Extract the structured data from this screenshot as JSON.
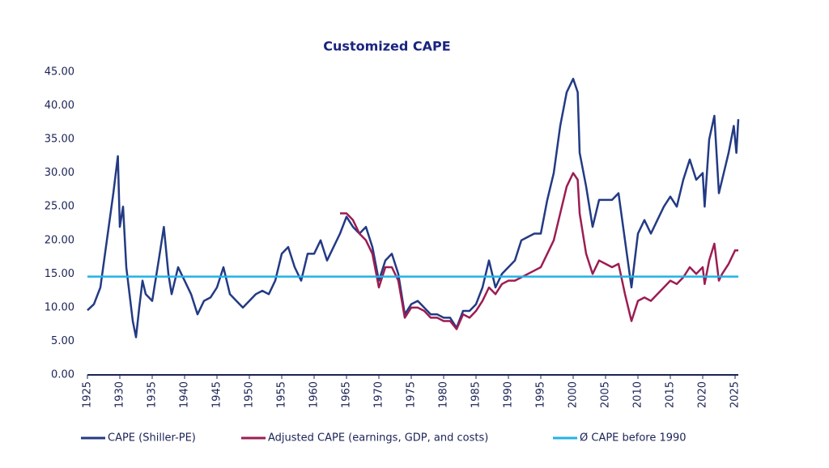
{
  "chart_data": {
    "type": "line",
    "title": "Customized CAPE",
    "xlim": [
      1925,
      2025.5
    ],
    "xticks": [
      1925,
      1930,
      1935,
      1940,
      1945,
      1950,
      1955,
      1960,
      1965,
      1970,
      1975,
      1980,
      1985,
      1990,
      1995,
      2000,
      2005,
      2010,
      2015,
      2020,
      2025
    ],
    "ylim": [
      0,
      45
    ],
    "yticks": [
      {
        "value": 0,
        "label": "0.00"
      },
      {
        "value": 5,
        "label": "5.00"
      },
      {
        "value": 10,
        "label": "10.00"
      },
      {
        "value": 15,
        "label": "15.00"
      },
      {
        "value": 20,
        "label": "20.00"
      },
      {
        "value": 25,
        "label": "25.00"
      },
      {
        "value": 30,
        "label": "30.00"
      },
      {
        "value": 35,
        "label": "35.00"
      },
      {
        "value": 40,
        "label": "40.00"
      },
      {
        "value": 45,
        "label": "45.00"
      }
    ],
    "legend": "bottom",
    "series": [
      {
        "name": "CAPE (Shiller-PE)",
        "color": "#233a84",
        "x": [
          1925,
          1926,
          1927,
          1928,
          1929,
          1929.7,
          1930,
          1930.5,
          1931,
          1932,
          1932.5,
          1933,
          1933.5,
          1934,
          1935,
          1936,
          1936.8,
          1937.5,
          1938,
          1939,
          1940,
          1941,
          1942,
          1943,
          1944,
          1945,
          1946,
          1947,
          1948,
          1949,
          1950,
          1951,
          1952,
          1953,
          1954,
          1955,
          1956,
          1957,
          1958,
          1959,
          1960,
          1961,
          1962,
          1963,
          1964,
          1965,
          1966,
          1967,
          1968,
          1969,
          1970,
          1971,
          1972,
          1973,
          1974,
          1975,
          1976,
          1977,
          1978,
          1979,
          1980,
          1981,
          1982,
          1983,
          1984,
          1985,
          1986,
          1987,
          1988,
          1989,
          1990,
          1991,
          1992,
          1993,
          1994,
          1995,
          1996,
          1997,
          1998,
          1999,
          2000,
          2000.7,
          2001,
          2002,
          2003,
          2004,
          2005,
          2006,
          2007,
          2008,
          2009,
          2009.5,
          2010,
          2011,
          2012,
          2013,
          2014,
          2015,
          2016,
          2017,
          2018,
          2019,
          2020,
          2020.3,
          2021,
          2021.8,
          2022.5,
          2023,
          2024,
          2024.8,
          2025.2,
          2025.5
        ],
        "values": [
          9.6,
          10.5,
          13,
          20,
          27,
          32.5,
          22,
          25,
          16,
          8,
          5.6,
          10,
          14,
          12,
          11,
          17,
          22,
          15,
          12,
          16,
          14,
          12,
          9,
          11,
          11.5,
          13,
          16,
          12,
          11,
          10,
          11,
          12,
          12.5,
          12,
          14,
          18,
          19,
          16,
          14,
          18,
          18,
          20,
          17,
          19,
          21,
          23.5,
          22,
          21,
          22,
          19,
          14,
          17,
          18,
          15,
          9,
          10.5,
          11,
          10,
          9,
          9,
          8.5,
          8.5,
          7,
          9.5,
          9.5,
          10.5,
          13,
          17,
          13,
          15,
          16,
          17,
          20,
          20.5,
          21,
          21,
          26,
          30,
          37,
          42,
          44,
          42,
          33,
          28,
          22,
          26,
          26,
          26,
          27,
          20,
          13,
          17,
          21,
          23,
          21,
          23,
          25,
          26.5,
          25,
          29,
          32,
          29,
          30,
          25,
          35,
          38.5,
          27,
          29,
          33,
          37,
          33,
          38
        ]
      },
      {
        "name": "Adjusted CAPE (earnings, GDP, and costs)",
        "color": "#9c1d52",
        "x": [
          1964,
          1965,
          1966,
          1967,
          1968,
          1969,
          1970,
          1971,
          1972,
          1973,
          1974,
          1975,
          1976,
          1977,
          1978,
          1979,
          1980,
          1981,
          1982,
          1983,
          1984,
          1985,
          1986,
          1987,
          1988,
          1989,
          1990,
          1991,
          1992,
          1993,
          1994,
          1995,
          1996,
          1997,
          1998,
          1999,
          2000,
          2000.7,
          2001,
          2002,
          2003,
          2004,
          2005,
          2006,
          2007,
          2008,
          2009,
          2010,
          2011,
          2012,
          2013,
          2014,
          2015,
          2016,
          2017,
          2018,
          2019,
          2020,
          2020.3,
          2021,
          2021.8,
          2022.5,
          2023,
          2024,
          2025,
          2025.5
        ],
        "values": [
          24,
          24,
          23,
          21,
          20,
          18,
          13,
          16,
          16,
          14,
          8.5,
          10,
          10,
          9.5,
          8.5,
          8.5,
          8,
          8,
          6.8,
          9,
          8.5,
          9.5,
          11,
          13,
          12,
          13.5,
          14,
          14,
          14.5,
          15,
          15.5,
          16,
          18,
          20,
          24,
          28,
          30,
          29,
          24,
          18,
          15,
          17,
          16.5,
          16,
          16.5,
          12,
          8,
          11,
          11.5,
          11,
          12,
          13,
          14,
          13.5,
          14.5,
          16,
          15,
          16,
          13.5,
          17,
          19.5,
          14,
          15,
          16.5,
          18.5,
          18.5
        ]
      },
      {
        "name": "Ø CAPE before 1990",
        "color": "#22b2e6",
        "value": 14.6
      }
    ]
  }
}
